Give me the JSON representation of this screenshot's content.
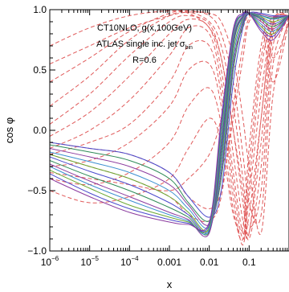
{
  "chart_data": {
    "type": "line",
    "title": "",
    "xlabel": "x",
    "ylabel": "cos φ",
    "xscale": "log",
    "xlim": [
      1e-06,
      1
    ],
    "ylim": [
      -1.0,
      1.0
    ],
    "grid": false,
    "legend": "none",
    "annotations": [
      {
        "text": "CT10NLO, g(x,100GeV)"
      },
      {
        "text": "ATLAS single inc. jet σ",
        "sub": "bin"
      },
      {
        "text": "R=0.6"
      }
    ],
    "x_ticks": [
      {
        "value": 1e-06,
        "base": "10",
        "exp": "−6"
      },
      {
        "value": 1e-05,
        "base": "10",
        "exp": "−5"
      },
      {
        "value": 0.0001,
        "base": "10",
        "exp": "−4"
      },
      {
        "value": 0.001,
        "base": "0.001",
        "exp": ""
      },
      {
        "value": 0.01,
        "base": "0.01",
        "exp": ""
      },
      {
        "value": 0.1,
        "base": "0.1",
        "exp": ""
      }
    ],
    "y_ticks": [
      {
        "value": 1.0,
        "label": "1.0"
      },
      {
        "value": 0.5,
        "label": "0.5"
      },
      {
        "value": 0.0,
        "label": "0.0"
      },
      {
        "value": -0.5,
        "label": "−0.5"
      },
      {
        "value": -1.0,
        "label": "−1.0"
      }
    ],
    "x": [
      1e-06,
      1e-05,
      0.0001,
      0.001,
      0.003,
      0.01,
      0.02,
      0.04,
      0.07,
      0.1,
      0.2,
      0.4,
      1
    ],
    "series": [
      {
        "color": "#e05a5a",
        "style": "dashed",
        "values": [
          0.55,
          0.7,
          0.85,
          0.95,
          0.98,
          0.97,
          0.9,
          0.6,
          0.1,
          -0.3,
          -0.85,
          0.3,
          0.95
        ]
      },
      {
        "color": "#e05a5a",
        "style": "dashed",
        "values": [
          0.4,
          0.6,
          0.82,
          0.97,
          0.99,
          0.95,
          0.8,
          0.4,
          -0.2,
          -0.6,
          -0.7,
          0.55,
          0.95
        ]
      },
      {
        "color": "#e05a5a",
        "style": "dashed",
        "values": [
          0.2,
          0.45,
          0.75,
          0.95,
          0.98,
          0.9,
          0.7,
          0.2,
          -0.4,
          -0.8,
          -0.5,
          0.7,
          0.95
        ]
      },
      {
        "color": "#e05a5a",
        "style": "dashed",
        "values": [
          0.05,
          0.3,
          0.62,
          0.9,
          0.95,
          0.88,
          0.6,
          0.0,
          -0.6,
          -0.9,
          -0.3,
          0.8,
          0.95
        ]
      },
      {
        "color": "#e05a5a",
        "style": "dashed",
        "values": [
          -0.05,
          0.15,
          0.45,
          0.8,
          0.92,
          0.85,
          0.5,
          -0.2,
          -0.75,
          -0.85,
          -0.1,
          0.85,
          0.95
        ]
      },
      {
        "color": "#e05a5a",
        "style": "dashed",
        "values": [
          -0.15,
          0.0,
          0.25,
          0.62,
          0.85,
          0.8,
          0.4,
          -0.35,
          -0.85,
          -0.7,
          0.1,
          0.88,
          0.95
        ]
      },
      {
        "color": "#e05a5a",
        "style": "dashed",
        "values": [
          -0.2,
          -0.1,
          0.05,
          0.4,
          0.7,
          0.7,
          0.3,
          -0.45,
          -0.9,
          -0.55,
          0.3,
          0.9,
          0.95
        ]
      },
      {
        "color": "#e05a5a",
        "style": "dashed",
        "values": [
          -0.3,
          -0.25,
          -0.1,
          0.2,
          0.5,
          0.55,
          0.2,
          -0.55,
          -0.95,
          -0.45,
          0.5,
          0.92,
          0.95
        ]
      },
      {
        "color": "#e05a5a",
        "style": "dashed",
        "values": [
          -0.4,
          -0.45,
          -0.35,
          -0.1,
          0.2,
          0.35,
          0.05,
          -0.65,
          -0.9,
          -0.3,
          0.6,
          0.93,
          0.95
        ]
      },
      {
        "color": "#e05a5a",
        "style": "dashed",
        "values": [
          -0.5,
          -0.6,
          -0.55,
          -0.4,
          -0.15,
          0.1,
          -0.1,
          -0.7,
          -0.8,
          -0.15,
          0.7,
          0.94,
          0.95
        ]
      },
      {
        "color": "#e05a5a",
        "style": "dashed",
        "values": [
          -0.1,
          -0.15,
          -0.2,
          -0.35,
          -0.55,
          -0.65,
          -0.5,
          0.1,
          0.6,
          0.9,
          0.95,
          0.8,
          0.95
        ]
      },
      {
        "color": "#e05a5a",
        "style": "dashed",
        "values": [
          -0.2,
          -0.3,
          -0.4,
          -0.55,
          -0.7,
          -0.75,
          -0.55,
          0.2,
          0.7,
          0.93,
          0.95,
          0.6,
          0.9
        ]
      },
      {
        "color": "#e05a5a",
        "style": "dashed",
        "values": [
          0.7,
          0.85,
          0.95,
          0.99,
          0.97,
          0.85,
          0.6,
          0.0,
          -0.5,
          -0.85,
          0.1,
          0.9,
          0.95
        ]
      },
      {
        "color": "#e05a5a",
        "style": "dashed",
        "values": [
          -0.35,
          -0.4,
          -0.45,
          -0.5,
          -0.4,
          -0.2,
          0.1,
          0.6,
          0.85,
          0.95,
          0.9,
          0.4,
          0.9
        ]
      },
      {
        "color": "#4a4acc",
        "style": "solid",
        "values": [
          -0.1,
          -0.15,
          -0.2,
          -0.35,
          -0.55,
          -0.72,
          -0.5,
          0.4,
          0.85,
          0.97,
          0.97,
          0.95,
          0.95
        ]
      },
      {
        "color": "#2e8b57",
        "style": "solid",
        "values": [
          -0.12,
          -0.18,
          -0.25,
          -0.4,
          -0.6,
          -0.75,
          -0.4,
          0.5,
          0.88,
          0.97,
          0.95,
          0.93,
          0.95
        ]
      },
      {
        "color": "#8b3a9e",
        "style": "solid",
        "values": [
          -0.15,
          -0.22,
          -0.3,
          -0.45,
          -0.62,
          -0.78,
          -0.35,
          0.55,
          0.9,
          0.97,
          0.96,
          0.94,
          0.95
        ]
      },
      {
        "color": "#3b8fd0",
        "style": "solid",
        "values": [
          -0.18,
          -0.26,
          -0.35,
          -0.5,
          -0.65,
          -0.8,
          -0.3,
          0.6,
          0.92,
          0.97,
          0.95,
          0.92,
          0.95
        ]
      },
      {
        "color": "#6ba832",
        "style": "solid",
        "values": [
          -0.2,
          -0.3,
          -0.4,
          -0.55,
          -0.68,
          -0.82,
          -0.25,
          0.65,
          0.93,
          0.97,
          0.94,
          0.9,
          0.95
        ]
      },
      {
        "color": "#4a4acc",
        "style": "solid",
        "values": [
          -0.22,
          -0.34,
          -0.45,
          -0.6,
          -0.7,
          -0.83,
          -0.2,
          0.7,
          0.94,
          0.97,
          0.93,
          0.88,
          0.95
        ]
      },
      {
        "color": "#2e8b57",
        "style": "solid",
        "values": [
          -0.25,
          -0.38,
          -0.5,
          -0.64,
          -0.72,
          -0.84,
          -0.15,
          0.72,
          0.95,
          0.97,
          0.92,
          0.86,
          0.95
        ]
      },
      {
        "color": "#8b3a9e",
        "style": "solid",
        "values": [
          -0.28,
          -0.42,
          -0.55,
          -0.68,
          -0.74,
          -0.85,
          -0.1,
          0.75,
          0.95,
          0.97,
          0.9,
          0.84,
          0.95
        ]
      },
      {
        "color": "#3b8fd0",
        "style": "solid",
        "values": [
          -0.3,
          -0.45,
          -0.58,
          -0.7,
          -0.75,
          -0.82,
          -0.05,
          0.78,
          0.96,
          0.97,
          0.88,
          0.82,
          0.95
        ]
      },
      {
        "color": "#6ba832",
        "style": "solid",
        "values": [
          -0.33,
          -0.48,
          -0.62,
          -0.72,
          -0.76,
          -0.8,
          0.0,
          0.8,
          0.96,
          0.97,
          0.86,
          0.8,
          0.95
        ]
      },
      {
        "color": "#4a4acc",
        "style": "solid",
        "values": [
          -0.36,
          -0.52,
          -0.65,
          -0.74,
          -0.77,
          -0.78,
          0.05,
          0.82,
          0.96,
          0.97,
          0.84,
          0.78,
          0.95
        ]
      },
      {
        "color": "#8b3a9e",
        "style": "solid",
        "values": [
          -0.4,
          -0.55,
          -0.68,
          -0.76,
          -0.78,
          -0.76,
          0.1,
          0.84,
          0.97,
          0.97,
          0.82,
          0.75,
          0.95
        ]
      }
    ]
  }
}
